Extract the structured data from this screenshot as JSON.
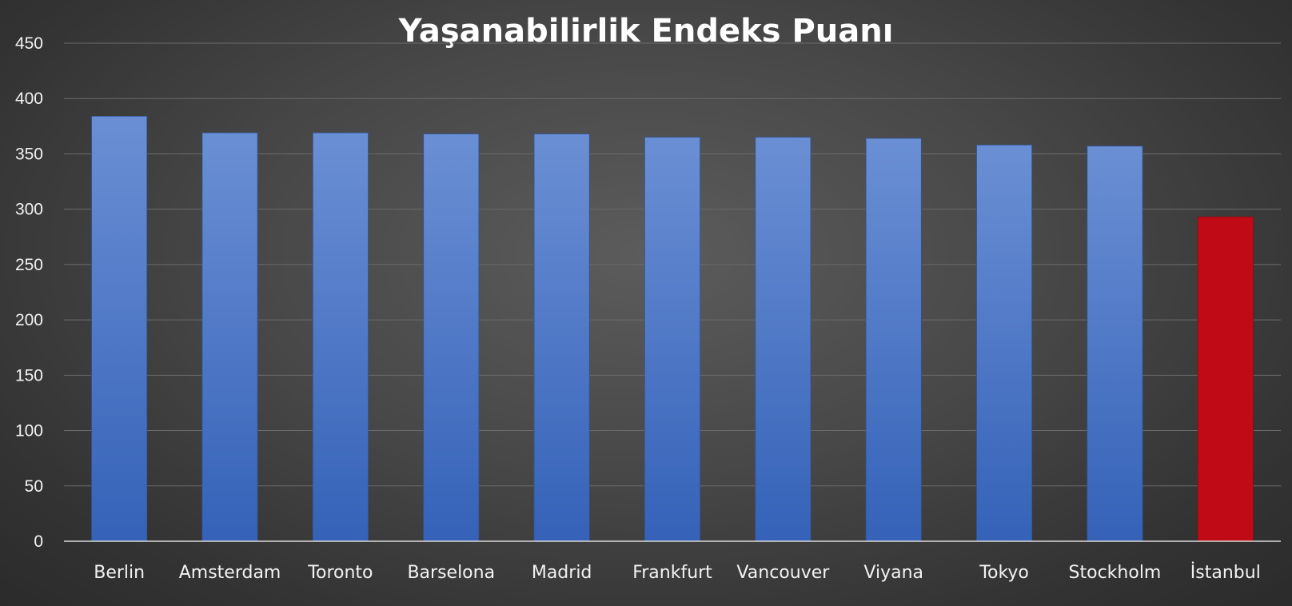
{
  "chart_data": {
    "type": "bar",
    "title": "Yaşanabilirlik Endeks Puanı",
    "xlabel": "",
    "ylabel": "",
    "categories": [
      "Berlin",
      "Amsterdam",
      "Toronto",
      "Barselona",
      "Madrid",
      "Frankfurt",
      "Vancouver",
      "Viyana",
      "Tokyo",
      "Stockholm",
      "İstanbul"
    ],
    "values": [
      384,
      369,
      369,
      368,
      368,
      365,
      365,
      364,
      358,
      357,
      293
    ],
    "ylim": [
      0,
      450
    ],
    "yticks": [
      0,
      50,
      100,
      150,
      200,
      250,
      300,
      350,
      400,
      450
    ],
    "grid": true,
    "legend": "none",
    "colors": {
      "bar": "#4472c4",
      "bar_light": "#6a8fd4",
      "bar_dark": "#3562b8",
      "highlight": "#c00a16",
      "highlight_category": "İstanbul",
      "gridline": "#6b6b6b",
      "axis": "#d9d9d9",
      "text": "#f2f2f2"
    }
  }
}
